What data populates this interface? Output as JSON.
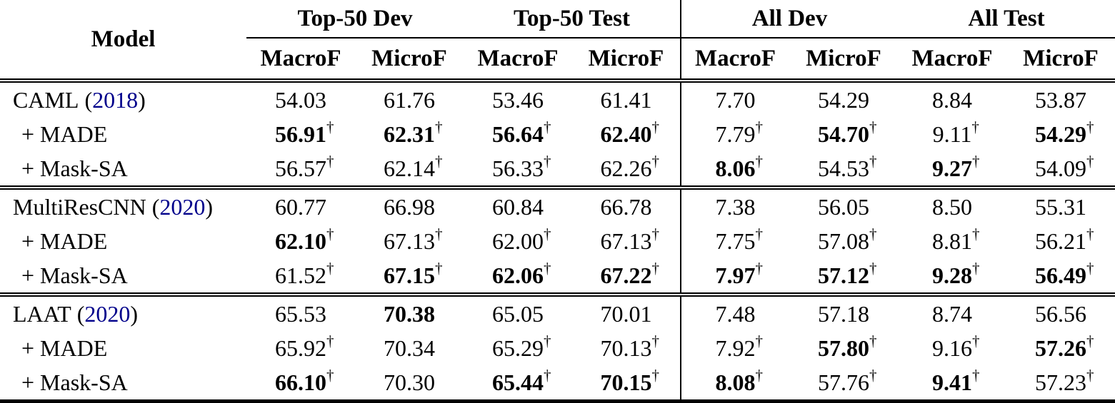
{
  "table": {
    "corner_header": "Model",
    "dagger": "†",
    "paren_open": "(",
    "paren_close": ")",
    "year_link_color": "#00008b",
    "group_headers": [
      "Top-50 Dev",
      "Top-50 Test",
      "All Dev",
      "All Test"
    ],
    "sub_headers": [
      "MacroF",
      "MicroF",
      "MacroF",
      "MicroF",
      "MacroF",
      "MicroF",
      "MacroF",
      "MicroF"
    ],
    "blocks": [
      {
        "rows": [
          {
            "model": "CAML",
            "year": "2018",
            "indent": false,
            "cells": [
              {
                "v": "54.03"
              },
              {
                "v": "61.76"
              },
              {
                "v": "53.46"
              },
              {
                "v": "61.41"
              },
              {
                "v": "7.70"
              },
              {
                "v": "54.29"
              },
              {
                "v": "8.84"
              },
              {
                "v": "53.87"
              }
            ]
          },
          {
            "model": "+ MADE",
            "indent": true,
            "cells": [
              {
                "v": "56.91",
                "b": true,
                "d": true
              },
              {
                "v": "62.31",
                "b": true,
                "d": true
              },
              {
                "v": "56.64",
                "b": true,
                "d": true
              },
              {
                "v": "62.40",
                "b": true,
                "d": true
              },
              {
                "v": "7.79",
                "d": true
              },
              {
                "v": "54.70",
                "b": true,
                "d": true
              },
              {
                "v": "9.11",
                "d": true
              },
              {
                "v": "54.29",
                "b": true,
                "d": true
              }
            ]
          },
          {
            "model": "+ Mask-SA",
            "indent": true,
            "cells": [
              {
                "v": "56.57",
                "d": true
              },
              {
                "v": "62.14",
                "d": true
              },
              {
                "v": "56.33",
                "d": true
              },
              {
                "v": "62.26",
                "d": true
              },
              {
                "v": "8.06",
                "b": true,
                "d": true
              },
              {
                "v": "54.53",
                "d": true
              },
              {
                "v": "9.27",
                "b": true,
                "d": true
              },
              {
                "v": "54.09",
                "d": true
              }
            ]
          }
        ]
      },
      {
        "rows": [
          {
            "model": "MultiResCNN",
            "year": "2020",
            "indent": false,
            "cells": [
              {
                "v": "60.77"
              },
              {
                "v": "66.98"
              },
              {
                "v": "60.84"
              },
              {
                "v": "66.78"
              },
              {
                "v": "7.38"
              },
              {
                "v": "56.05"
              },
              {
                "v": "8.50"
              },
              {
                "v": "55.31"
              }
            ]
          },
          {
            "model": "+ MADE",
            "indent": true,
            "cells": [
              {
                "v": "62.10",
                "b": true,
                "d": true
              },
              {
                "v": "67.13",
                "d": true
              },
              {
                "v": "62.00",
                "d": true
              },
              {
                "v": "67.13",
                "d": true
              },
              {
                "v": "7.75",
                "d": true
              },
              {
                "v": "57.08",
                "d": true
              },
              {
                "v": "8.81",
                "d": true
              },
              {
                "v": "56.21",
                "d": true
              }
            ]
          },
          {
            "model": "+ Mask-SA",
            "indent": true,
            "cells": [
              {
                "v": "61.52",
                "d": true
              },
              {
                "v": "67.15",
                "b": true,
                "d": true
              },
              {
                "v": "62.06",
                "b": true,
                "d": true
              },
              {
                "v": "67.22",
                "b": true,
                "d": true
              },
              {
                "v": "7.97",
                "b": true,
                "d": true
              },
              {
                "v": "57.12",
                "b": true,
                "d": true
              },
              {
                "v": "9.28",
                "b": true,
                "d": true
              },
              {
                "v": "56.49",
                "b": true,
                "d": true
              }
            ]
          }
        ]
      },
      {
        "rows": [
          {
            "model": "LAAT",
            "year": "2020",
            "indent": false,
            "cells": [
              {
                "v": "65.53"
              },
              {
                "v": "70.38",
                "b": true
              },
              {
                "v": "65.05"
              },
              {
                "v": "70.01"
              },
              {
                "v": "7.48"
              },
              {
                "v": "57.18"
              },
              {
                "v": "8.74"
              },
              {
                "v": "56.56"
              }
            ]
          },
          {
            "model": "+ MADE",
            "indent": true,
            "cells": [
              {
                "v": "65.92",
                "d": true
              },
              {
                "v": "70.34"
              },
              {
                "v": "65.29",
                "d": true
              },
              {
                "v": "70.13",
                "d": true
              },
              {
                "v": "7.92",
                "d": true
              },
              {
                "v": "57.80",
                "b": true,
                "d": true
              },
              {
                "v": "9.16",
                "d": true
              },
              {
                "v": "57.26",
                "b": true,
                "d": true
              }
            ]
          },
          {
            "model": "+ Mask-SA",
            "indent": true,
            "cells": [
              {
                "v": "66.10",
                "b": true,
                "d": true
              },
              {
                "v": "70.30"
              },
              {
                "v": "65.44",
                "b": true,
                "d": true
              },
              {
                "v": "70.15",
                "b": true,
                "d": true
              },
              {
                "v": "8.08",
                "b": true,
                "d": true
              },
              {
                "v": "57.76",
                "d": true
              },
              {
                "v": "9.41",
                "b": true,
                "d": true
              },
              {
                "v": "57.23",
                "d": true
              }
            ]
          }
        ]
      }
    ]
  }
}
